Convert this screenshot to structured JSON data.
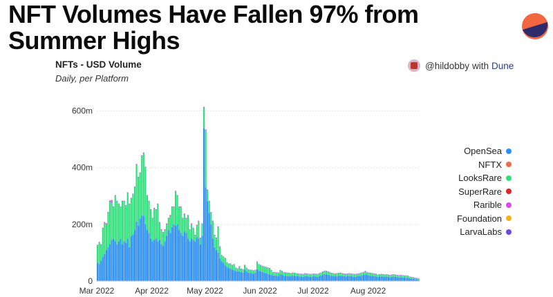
{
  "headline": "NFT Volumes Have Fallen 97% from Summer Highs",
  "credit": {
    "handle": "@hildobby",
    "with": "with",
    "brand": "Dune"
  },
  "colors": {
    "opensea": "#2c8ef8",
    "looksrare": "#2fe07a",
    "nftx": "#f06a4a",
    "superrare": "#e8201e",
    "rarible": "#d84be8",
    "foundation": "#f5b11c",
    "larvalabs": "#6b47e8",
    "logo_top": "#f2673f",
    "logo_bottom": "#2d2b6b"
  },
  "chart_data": {
    "type": "bar",
    "stacked": true,
    "title": "NFTs - USD Volume",
    "subtitle": "Daily, per Platform",
    "xlabel": "",
    "ylabel": "",
    "ylim": [
      0,
      650000000
    ],
    "y_ticks": [
      {
        "value": 0,
        "label": "0"
      },
      {
        "value": 200000000,
        "label": "200m"
      },
      {
        "value": 400000000,
        "label": "400m"
      },
      {
        "value": 600000000,
        "label": "600m"
      }
    ],
    "x_ticks": [
      {
        "date": "2022-03-01",
        "label": "Mar 2022"
      },
      {
        "date": "2022-04-01",
        "label": "Apr 2022"
      },
      {
        "date": "2022-05-01",
        "label": "May 2022"
      },
      {
        "date": "2022-06-01",
        "label": "Jun 2022"
      },
      {
        "date": "2022-07-01",
        "label": "Jul 2022"
      },
      {
        "date": "2022-08-01",
        "label": "Aug 2022"
      }
    ],
    "x_start": "2022-03-01",
    "x_end": "2022-08-29",
    "grid": true,
    "legend_position": "right",
    "legend": [
      "OpenSea",
      "NFTX",
      "LooksRare",
      "SuperRare",
      "Rarible",
      "Foundation",
      "LarvaLabs"
    ],
    "series": [
      {
        "name": "OpenSea",
        "color": "#2c8ef8",
        "values_m": [
          65,
          60,
          72,
          85,
          95,
          110,
          120,
          130,
          145,
          150,
          140,
          130,
          140,
          150,
          130,
          140,
          135,
          150,
          120,
          160,
          165,
          180,
          210,
          195,
          220,
          230,
          230,
          200,
          180,
          170,
          150,
          140,
          145,
          150,
          140,
          145,
          130,
          125,
          140,
          160,
          180,
          170,
          190,
          200,
          195,
          200,
          180,
          170,
          160,
          175,
          170,
          150,
          140,
          150,
          145,
          140,
          155,
          150,
          130,
          160,
          540,
          330,
          280,
          240,
          200,
          150,
          120,
          110,
          100,
          80,
          70,
          65,
          55,
          50,
          45,
          45,
          40,
          38,
          36,
          33,
          35,
          32,
          30,
          40,
          35,
          30,
          28,
          28,
          26,
          30,
          42,
          38,
          35,
          32,
          30,
          28,
          26,
          24,
          22,
          20,
          20,
          19,
          18,
          25,
          22,
          20,
          19,
          18,
          17,
          18,
          20,
          19,
          18,
          17,
          16,
          16,
          15,
          18,
          17,
          16,
          15,
          16,
          17,
          16,
          15,
          18,
          20,
          22,
          25,
          24,
          22,
          20,
          19,
          18,
          17,
          18,
          19,
          20,
          18,
          17,
          16,
          17,
          18,
          17,
          16,
          15,
          16,
          17,
          18,
          20,
          22,
          24,
          22,
          20,
          19,
          18,
          17,
          16,
          15,
          16,
          17,
          16,
          15,
          16,
          15,
          14,
          15,
          16,
          15,
          14,
          13,
          14,
          13,
          12,
          12,
          11,
          10,
          9,
          8,
          7,
          6,
          5,
          5,
          5
        ]
      },
      {
        "name": "LooksRare",
        "color": "#2fe07a",
        "values_m": [
          60,
          75,
          55,
          100,
          110,
          90,
          120,
          150,
          130,
          110,
          160,
          150,
          130,
          110,
          150,
          140,
          130,
          160,
          150,
          130,
          140,
          150,
          200,
          170,
          160,
          210,
          220,
          200,
          120,
          110,
          100,
          80,
          110,
          100,
          130,
          60,
          50,
          45,
          40,
          40,
          40,
          60,
          70,
          60,
          120,
          100,
          80,
          90,
          60,
          60,
          50,
          80,
          40,
          50,
          40,
          20,
          40,
          60,
          20,
          40,
          70,
          200,
          40,
          40,
          40,
          60,
          40,
          40,
          90,
          40,
          20,
          20,
          25,
          15,
          15,
          15,
          15,
          20,
          10,
          10,
          15,
          10,
          10,
          15,
          10,
          10,
          10,
          10,
          10,
          8,
          25,
          20,
          20,
          20,
          20,
          20,
          20,
          20,
          15,
          10,
          10,
          10,
          10,
          12,
          12,
          10,
          10,
          10,
          10,
          8,
          8,
          8,
          8,
          8,
          8,
          8,
          8,
          8,
          8,
          8,
          8,
          8,
          8,
          8,
          8,
          8,
          8,
          10,
          10,
          10,
          10,
          10,
          8,
          8,
          8,
          8,
          8,
          8,
          8,
          8,
          8,
          8,
          8,
          8,
          8,
          8,
          8,
          8,
          8,
          8,
          8,
          10,
          8,
          8,
          8,
          8,
          8,
          8,
          6,
          6,
          6,
          6,
          6,
          6,
          6,
          6,
          6,
          6,
          6,
          6,
          6,
          6,
          6,
          6,
          6,
          6,
          4,
          4,
          4,
          3,
          3,
          3,
          3,
          3
        ]
      },
      {
        "name": "Rarible",
        "color": "#d84be8",
        "values_m": [
          2,
          2,
          2,
          2,
          2,
          3,
          3,
          3,
          10,
          2,
          2,
          2,
          2,
          2,
          2,
          2,
          2,
          2,
          2,
          2,
          2,
          2,
          2,
          2,
          2,
          2,
          2,
          2,
          2,
          2,
          2,
          2,
          2,
          2,
          2,
          2,
          2,
          2,
          2,
          2,
          2,
          2,
          2,
          2,
          2,
          2,
          2,
          2,
          2,
          2,
          2,
          2,
          2,
          2,
          2,
          2,
          2,
          2,
          2,
          2,
          3,
          3,
          2,
          2,
          2,
          2,
          2,
          2,
          2,
          2,
          1,
          1,
          1,
          1,
          1,
          1,
          1,
          1,
          1,
          1,
          1,
          1,
          1,
          1,
          1,
          1,
          1,
          1,
          1,
          1,
          1,
          1,
          1,
          1,
          1,
          1,
          1,
          1,
          1,
          1,
          1,
          1,
          1,
          1,
          1,
          1,
          1,
          1,
          1,
          1,
          1,
          1,
          1,
          1,
          1,
          1,
          1,
          1,
          1,
          1,
          1,
          1,
          1,
          1,
          1,
          1,
          1,
          1,
          1,
          1,
          1,
          1,
          1,
          1,
          1,
          1,
          1,
          1,
          1,
          1,
          1,
          1,
          1,
          1,
          1,
          1,
          1,
          1,
          1,
          1,
          1,
          1,
          1,
          1,
          1,
          1,
          1,
          1,
          1,
          1,
          1,
          1,
          1,
          1,
          1,
          1,
          1,
          1,
          1,
          1,
          1,
          1,
          1,
          1,
          1,
          1,
          1,
          1,
          1,
          1,
          1,
          1,
          1
        ]
      },
      {
        "name": "LarvaLabs",
        "color": "#6b47e8",
        "values_m": [
          1,
          1,
          1,
          1,
          1,
          1,
          1,
          1,
          1,
          1,
          1,
          1,
          1,
          1,
          1,
          1,
          1,
          1,
          1,
          1,
          1,
          1,
          1,
          1,
          1,
          1,
          1,
          1,
          1,
          1,
          1,
          1,
          1,
          1,
          1,
          1,
          1,
          1,
          1,
          1,
          1,
          1,
          1,
          1,
          1,
          1,
          1,
          1,
          1,
          1,
          1,
          1,
          1,
          1,
          1,
          1,
          1,
          1,
          1,
          1,
          1,
          1,
          1,
          1,
          1,
          1,
          1,
          1,
          1,
          1,
          1,
          1,
          1,
          1,
          1,
          1,
          1,
          1,
          1,
          1,
          1,
          1,
          1,
          1,
          1,
          1,
          1,
          1,
          1,
          1,
          1,
          1,
          1,
          1,
          1,
          1,
          1,
          1,
          1,
          1,
          1,
          1,
          1,
          1,
          1,
          1,
          1,
          1,
          1,
          1,
          1,
          1,
          1,
          1,
          1,
          1,
          1,
          1,
          1,
          1,
          1,
          1,
          1,
          1,
          1,
          1,
          1,
          1,
          1,
          1,
          1,
          1,
          1,
          1,
          1,
          1,
          1,
          1,
          1,
          1,
          1,
          1,
          1,
          1,
          1,
          1,
          1,
          1,
          1,
          1,
          1,
          1,
          1,
          1,
          1,
          1,
          1,
          1,
          1,
          1,
          1,
          1,
          1,
          1,
          1,
          1,
          1,
          1,
          1,
          1,
          1,
          1,
          1,
          1,
          1,
          1,
          1,
          1,
          1,
          1,
          1,
          1,
          1
        ]
      },
      {
        "name": "NFTX",
        "color": "#f06a4a",
        "values_m": []
      },
      {
        "name": "SuperRare",
        "color": "#e8201e",
        "values_m": []
      },
      {
        "name": "Foundation",
        "color": "#f5b11c",
        "values_m": []
      }
    ]
  }
}
